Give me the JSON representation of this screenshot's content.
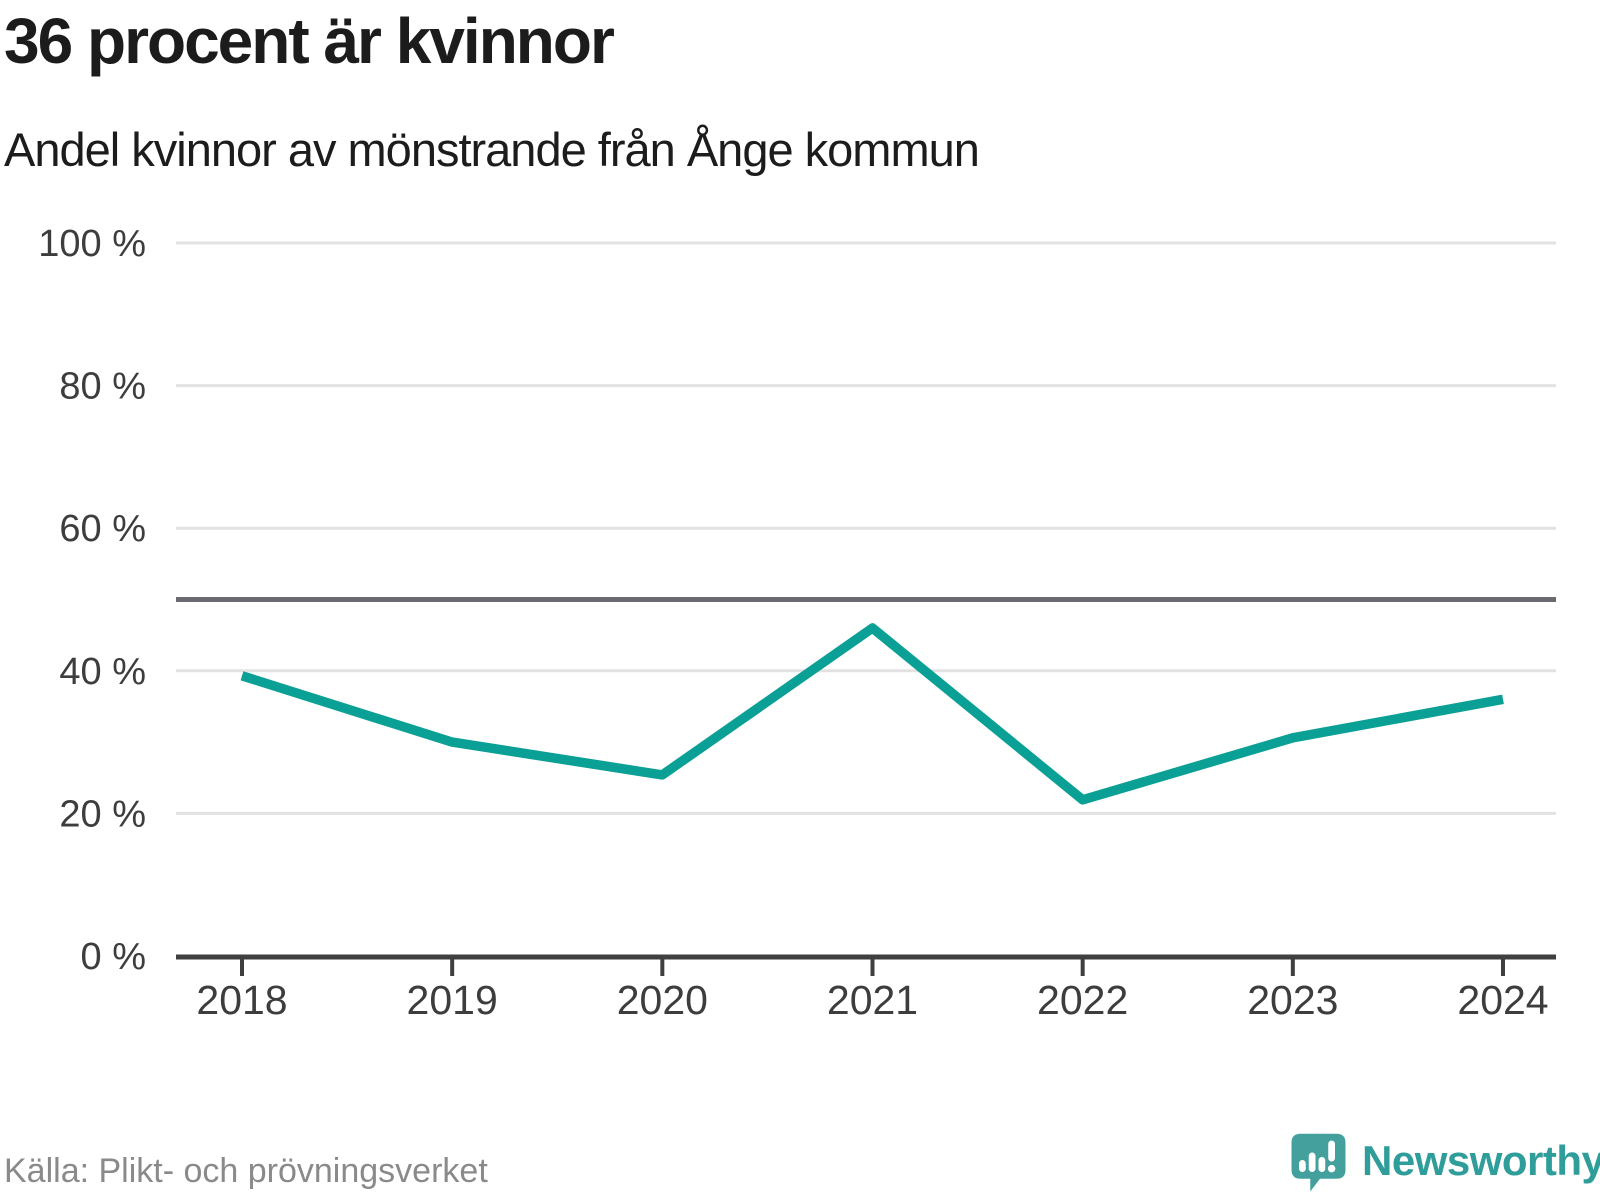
{
  "chart": {
    "title": "36 procent är kvinnor",
    "subtitle": "Andel kvinnor av mönstrande från Ånge kommun",
    "source": "Källa: Plikt- och prövningsverket",
    "brand": "Newsworthy"
  },
  "chart_data": {
    "type": "line",
    "title": "36 procent är kvinnor",
    "subtitle": "Andel kvinnor av mönstrande från Ånge kommun",
    "categories": [
      "2018",
      "2019",
      "2020",
      "2021",
      "2022",
      "2023",
      "2024"
    ],
    "series": [
      {
        "name": "Andel kvinnor av mönstrande",
        "values": [
          39.3,
          30.0,
          25.4,
          46.0,
          21.9,
          30.6,
          36.0
        ]
      }
    ],
    "xlabel": "",
    "ylabel": "",
    "ylim": [
      0,
      100
    ],
    "y_ticks": [
      {
        "value": 0,
        "label": "0 %"
      },
      {
        "value": 20,
        "label": "20 %"
      },
      {
        "value": 40,
        "label": "40 %"
      },
      {
        "value": 60,
        "label": "60 %"
      },
      {
        "value": 80,
        "label": "80 %"
      },
      {
        "value": 100,
        "label": "100 %"
      }
    ],
    "reference_line": 50,
    "grid": "horizontal",
    "legend": "none",
    "colors": {
      "line": "#0aa096",
      "reference_line": "#6a6a72",
      "gridline": "#e2e2e2",
      "axis": "#3f3f3f",
      "tick_label": "#3d3d3d",
      "title": "#1c1c1c",
      "source": "#8a8a8a",
      "brand": "#2f9d9a",
      "logo_bubble": "#43a09d"
    }
  }
}
